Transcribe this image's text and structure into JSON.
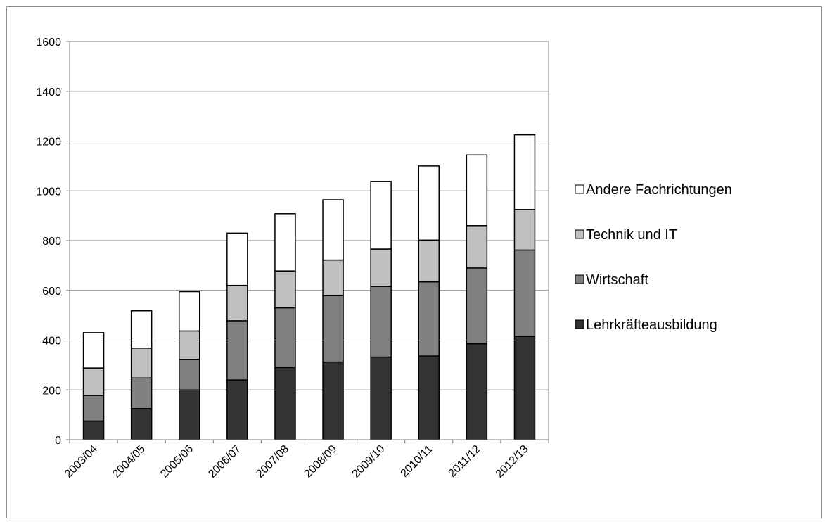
{
  "chart_data": {
    "type": "bar",
    "stacked": true,
    "title": "",
    "xlabel": "",
    "ylabel": "",
    "ylim": [
      0,
      1600
    ],
    "yticks": [
      0,
      200,
      400,
      600,
      800,
      1000,
      1200,
      1400,
      1600
    ],
    "grid": true,
    "legend_position": "right",
    "categories": [
      "2003/04",
      "2004/05",
      "2005/06",
      "2006/07",
      "2007/08",
      "2008/09",
      "2009/10",
      "2010/11",
      "2011/12",
      "2012/13"
    ],
    "series": [
      {
        "name": "Lehrkräfteausbildung",
        "color": "#333333",
        "values": [
          75,
          125,
          200,
          240,
          290,
          312,
          332,
          336,
          385,
          415
        ]
      },
      {
        "name": "Wirtschaft",
        "color": "#808080",
        "values": [
          103,
          123,
          122,
          238,
          240,
          267,
          284,
          298,
          305,
          347
        ]
      },
      {
        "name": "Technik und IT",
        "color": "#c0c0c0",
        "values": [
          110,
          120,
          115,
          142,
          148,
          143,
          150,
          168,
          170,
          163
        ]
      },
      {
        "name": "Andere Fachrichtungen",
        "color": "#ffffff",
        "values": [
          142,
          150,
          158,
          210,
          230,
          242,
          272,
          298,
          284,
          300
        ]
      }
    ]
  }
}
